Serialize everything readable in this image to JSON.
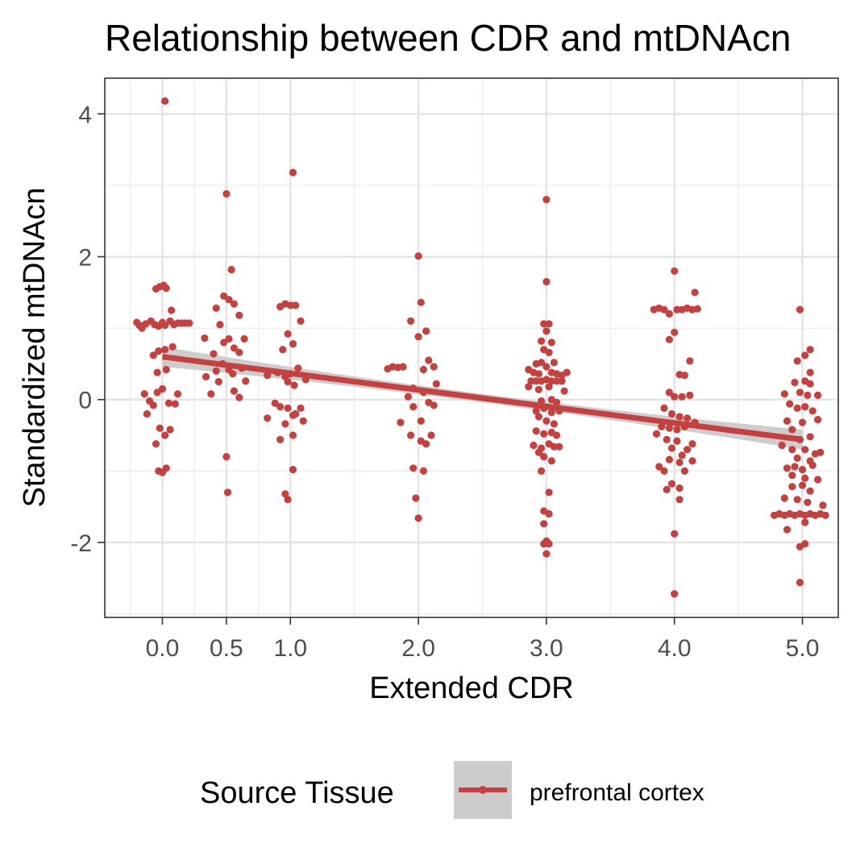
{
  "chart_data": {
    "type": "scatter",
    "title": "Relationship between CDR and mtDNAcn",
    "xlabel": "Extended CDR",
    "ylabel": "Standardized mtDNAcn",
    "xlim": [
      -0.45,
      5.28
    ],
    "ylim": [
      -3.05,
      4.5
    ],
    "x_ticks": [
      {
        "value": 0,
        "label": "0.0"
      },
      {
        "value": 0.5,
        "label": "0.5"
      },
      {
        "value": 1,
        "label": "1.0"
      },
      {
        "value": 2,
        "label": "2.0"
      },
      {
        "value": 3,
        "label": "3.0"
      },
      {
        "value": 4,
        "label": "4.0"
      },
      {
        "value": 5,
        "label": "5.0"
      }
    ],
    "y_ticks": [
      {
        "value": -2,
        "label": "-2"
      },
      {
        "value": 0,
        "label": "0"
      },
      {
        "value": 2,
        "label": "2"
      },
      {
        "value": 4,
        "label": "4"
      }
    ],
    "grid": true,
    "legend_position": "bottom",
    "legend": {
      "title": "Source Tissue",
      "entries": [
        {
          "label": "prefrontal cortex",
          "color": "#c5403f"
        }
      ]
    },
    "point_color": "#c5403f",
    "band_color": "#c8c8c8",
    "fit": {
      "x_start": 0,
      "x_end": 5,
      "y_start": 0.6,
      "y_end": -0.56,
      "band_halfwidth_start": 0.14,
      "band_halfwidth_mid": 0.06,
      "band_halfwidth_end": 0.14
    },
    "series": [
      {
        "name": "prefrontal cortex",
        "points": [
          [
            0.02,
            4.18
          ],
          [
            -0.2,
            1.08
          ],
          [
            -0.18,
            1.04
          ],
          [
            -0.16,
            1.0
          ],
          [
            -0.13,
            1.06
          ],
          [
            -0.09,
            1.1
          ],
          [
            -0.06,
            1.05
          ],
          [
            -0.03,
            1.03
          ],
          [
            0.0,
            1.08
          ],
          [
            0.02,
            1.04
          ],
          [
            0.06,
            1.1
          ],
          [
            0.09,
            1.05
          ],
          [
            0.12,
            1.07
          ],
          [
            0.15,
            1.07
          ],
          [
            0.18,
            1.07
          ],
          [
            0.21,
            1.07
          ],
          [
            -0.05,
            1.55
          ],
          [
            -0.02,
            1.58
          ],
          [
            0.01,
            1.6
          ],
          [
            0.03,
            1.56
          ],
          [
            0.07,
            1.25
          ],
          [
            -0.07,
            0.62
          ],
          [
            -0.03,
            0.68
          ],
          [
            0.02,
            0.7
          ],
          [
            0.08,
            0.74
          ],
          [
            -0.04,
            0.38
          ],
          [
            0.03,
            0.42
          ],
          [
            -0.14,
            0.08
          ],
          [
            -0.1,
            -0.02
          ],
          [
            -0.07,
            -0.08
          ],
          [
            -0.04,
            0.1
          ],
          [
            0.0,
            0.15
          ],
          [
            0.05,
            -0.05
          ],
          [
            0.1,
            -0.06
          ],
          [
            0.12,
            0.08
          ],
          [
            -0.12,
            -0.2
          ],
          [
            -0.02,
            -0.4
          ],
          [
            0.02,
            -0.5
          ],
          [
            0.06,
            -0.42
          ],
          [
            -0.05,
            -0.62
          ],
          [
            -0.03,
            -1.0
          ],
          [
            0.0,
            -1.02
          ],
          [
            0.03,
            -0.96
          ],
          [
            0.5,
            2.88
          ],
          [
            0.48,
            1.45
          ],
          [
            0.52,
            1.4
          ],
          [
            0.54,
            1.82
          ],
          [
            0.42,
            1.28
          ],
          [
            0.56,
            1.34
          ],
          [
            0.6,
            1.18
          ],
          [
            0.45,
            1.05
          ],
          [
            0.33,
            0.86
          ],
          [
            0.48,
            0.8
          ],
          [
            0.52,
            0.85
          ],
          [
            0.64,
            0.85
          ],
          [
            0.4,
            0.64
          ],
          [
            0.56,
            0.72
          ],
          [
            0.6,
            0.66
          ],
          [
            0.34,
            0.32
          ],
          [
            0.42,
            0.4
          ],
          [
            0.47,
            0.5
          ],
          [
            0.52,
            0.42
          ],
          [
            0.55,
            0.36
          ],
          [
            0.62,
            0.44
          ],
          [
            0.44,
            0.25
          ],
          [
            0.65,
            0.26
          ],
          [
            0.38,
            0.08
          ],
          [
            0.56,
            0.12
          ],
          [
            0.6,
            0.03
          ],
          [
            0.5,
            -0.8
          ],
          [
            0.51,
            -1.3
          ],
          [
            1.02,
            3.18
          ],
          [
            0.92,
            1.3
          ],
          [
            0.96,
            1.34
          ],
          [
            1.0,
            1.32
          ],
          [
            1.04,
            1.32
          ],
          [
            1.08,
            1.1
          ],
          [
            0.98,
            0.92
          ],
          [
            0.94,
            0.7
          ],
          [
            1.02,
            0.78
          ],
          [
            0.82,
            0.34
          ],
          [
            0.9,
            0.38
          ],
          [
            0.96,
            0.32
          ],
          [
            1.0,
            0.36
          ],
          [
            1.06,
            0.44
          ],
          [
            1.12,
            0.28
          ],
          [
            0.98,
            0.25
          ],
          [
            1.03,
            0.2
          ],
          [
            0.88,
            -0.05
          ],
          [
            0.92,
            -0.1
          ],
          [
            0.98,
            -0.12
          ],
          [
            1.04,
            -0.2
          ],
          [
            1.08,
            -0.12
          ],
          [
            0.82,
            -0.26
          ],
          [
            0.96,
            -0.34
          ],
          [
            1.02,
            -0.22
          ],
          [
            1.1,
            -0.3
          ],
          [
            0.92,
            -0.56
          ],
          [
            1.02,
            -0.5
          ],
          [
            1.02,
            -0.98
          ],
          [
            0.96,
            -1.32
          ],
          [
            0.98,
            -1.4
          ],
          [
            2.0,
            2.01
          ],
          [
            2.02,
            1.36
          ],
          [
            1.94,
            1.1
          ],
          [
            2.06,
            0.96
          ],
          [
            2.0,
            0.88
          ],
          [
            1.76,
            0.43
          ],
          [
            1.8,
            0.46
          ],
          [
            1.84,
            0.45
          ],
          [
            1.88,
            0.46
          ],
          [
            2.04,
            0.42
          ],
          [
            2.08,
            0.55
          ],
          [
            2.12,
            0.46
          ],
          [
            2.14,
            0.22
          ],
          [
            1.96,
            0.16
          ],
          [
            2.04,
            0.1
          ],
          [
            1.92,
            0.04
          ],
          [
            1.96,
            -0.1
          ],
          [
            2.08,
            -0.04
          ],
          [
            2.12,
            -0.08
          ],
          [
            1.86,
            -0.32
          ],
          [
            2.02,
            -0.3
          ],
          [
            1.94,
            -0.5
          ],
          [
            2.02,
            -0.58
          ],
          [
            2.06,
            -0.62
          ],
          [
            2.1,
            -0.5
          ],
          [
            1.96,
            -0.96
          ],
          [
            2.04,
            -1.0
          ],
          [
            1.98,
            -1.38
          ],
          [
            2.0,
            -1.66
          ],
          [
            3.0,
            2.8
          ],
          [
            3.0,
            1.65
          ],
          [
            2.98,
            1.06
          ],
          [
            3.02,
            1.06
          ],
          [
            3.0,
            0.96
          ],
          [
            2.96,
            0.82
          ],
          [
            3.04,
            0.8
          ],
          [
            2.98,
            0.7
          ],
          [
            3.02,
            0.66
          ],
          [
            2.92,
            0.5
          ],
          [
            2.96,
            0.52
          ],
          [
            3.06,
            0.52
          ],
          [
            3.0,
            0.46
          ],
          [
            2.86,
            0.42
          ],
          [
            2.9,
            0.38
          ],
          [
            2.94,
            0.36
          ],
          [
            3.04,
            0.38
          ],
          [
            3.08,
            0.36
          ],
          [
            3.12,
            0.34
          ],
          [
            3.16,
            0.38
          ],
          [
            2.88,
            0.26
          ],
          [
            2.92,
            0.26
          ],
          [
            2.96,
            0.26
          ],
          [
            3.0,
            0.28
          ],
          [
            3.04,
            0.26
          ],
          [
            3.08,
            0.26
          ],
          [
            3.12,
            0.26
          ],
          [
            2.86,
            0.18
          ],
          [
            2.94,
            0.14
          ],
          [
            3.02,
            0.18
          ],
          [
            3.14,
            0.12
          ],
          [
            2.96,
            -0.02
          ],
          [
            3.04,
            0.0
          ],
          [
            3.08,
            -0.04
          ],
          [
            2.92,
            -0.16
          ],
          [
            2.98,
            -0.12
          ],
          [
            3.04,
            -0.18
          ],
          [
            3.1,
            -0.16
          ],
          [
            2.94,
            -0.24
          ],
          [
            3.0,
            -0.3
          ],
          [
            3.06,
            -0.34
          ],
          [
            2.92,
            -0.44
          ],
          [
            2.98,
            -0.48
          ],
          [
            3.04,
            -0.46
          ],
          [
            3.08,
            -0.5
          ],
          [
            2.9,
            -0.64
          ],
          [
            2.96,
            -0.68
          ],
          [
            3.02,
            -0.62
          ],
          [
            3.06,
            -0.66
          ],
          [
            3.1,
            -0.66
          ],
          [
            2.94,
            -0.74
          ],
          [
            2.98,
            -0.8
          ],
          [
            3.04,
            -0.86
          ],
          [
            2.96,
            -1.0
          ],
          [
            3.02,
            -1.3
          ],
          [
            2.98,
            -1.56
          ],
          [
            3.02,
            -1.6
          ],
          [
            2.98,
            -1.74
          ],
          [
            3.0,
            -1.98
          ],
          [
            2.98,
            -2.02
          ],
          [
            3.02,
            -2.02
          ],
          [
            3.0,
            -2.16
          ],
          [
            4.0,
            1.8
          ],
          [
            4.16,
            1.5
          ],
          [
            3.84,
            1.26
          ],
          [
            3.88,
            1.28
          ],
          [
            3.92,
            1.26
          ],
          [
            3.96,
            1.2
          ],
          [
            4.02,
            1.26
          ],
          [
            4.06,
            1.26
          ],
          [
            4.1,
            1.28
          ],
          [
            4.14,
            1.26
          ],
          [
            4.18,
            1.27
          ],
          [
            4.0,
            0.94
          ],
          [
            3.96,
            0.84
          ],
          [
            4.12,
            0.54
          ],
          [
            4.04,
            0.35
          ],
          [
            4.08,
            0.34
          ],
          [
            3.96,
            0.1
          ],
          [
            4.0,
            0.04
          ],
          [
            4.06,
            0.04
          ],
          [
            4.12,
            0.06
          ],
          [
            3.92,
            -0.12
          ],
          [
            3.98,
            -0.2
          ],
          [
            4.04,
            -0.24
          ],
          [
            4.1,
            -0.26
          ],
          [
            4.16,
            -0.32
          ],
          [
            3.9,
            -0.38
          ],
          [
            3.96,
            -0.4
          ],
          [
            4.02,
            -0.42
          ],
          [
            4.08,
            -0.38
          ],
          [
            3.86,
            -0.48
          ],
          [
            3.94,
            -0.56
          ],
          [
            4.02,
            -0.58
          ],
          [
            4.14,
            -0.62
          ],
          [
            3.98,
            -0.68
          ],
          [
            4.1,
            -0.7
          ],
          [
            4.06,
            -0.78
          ],
          [
            3.96,
            -0.84
          ],
          [
            4.14,
            -0.86
          ],
          [
            3.88,
            -0.94
          ],
          [
            3.92,
            -1.0
          ],
          [
            4.04,
            -0.88
          ],
          [
            4.08,
            -1.0
          ],
          [
            3.98,
            -1.18
          ],
          [
            4.04,
            -1.24
          ],
          [
            3.94,
            -1.26
          ],
          [
            4.04,
            -1.4
          ],
          [
            4.0,
            -1.88
          ],
          [
            4.0,
            -2.72
          ],
          [
            4.98,
            1.26
          ],
          [
            5.06,
            0.7
          ],
          [
            5.02,
            0.62
          ],
          [
            4.96,
            0.54
          ],
          [
            5.06,
            0.38
          ],
          [
            4.94,
            0.24
          ],
          [
            5.02,
            0.26
          ],
          [
            5.06,
            0.22
          ],
          [
            4.86,
            0.08
          ],
          [
            4.98,
            0.1
          ],
          [
            5.04,
            0.06
          ],
          [
            5.12,
            0.06
          ],
          [
            4.9,
            -0.06
          ],
          [
            4.96,
            -0.12
          ],
          [
            5.02,
            -0.1
          ],
          [
            5.08,
            -0.16
          ],
          [
            4.88,
            -0.3
          ],
          [
            5.0,
            -0.32
          ],
          [
            5.12,
            -0.28
          ],
          [
            4.92,
            -0.42
          ],
          [
            4.98,
            -0.56
          ],
          [
            5.06,
            -0.52
          ],
          [
            4.84,
            -0.64
          ],
          [
            4.92,
            -0.7
          ],
          [
            5.02,
            -0.7
          ],
          [
            5.1,
            -0.76
          ],
          [
            5.14,
            -0.74
          ],
          [
            4.96,
            -0.82
          ],
          [
            5.06,
            -0.86
          ],
          [
            4.88,
            -0.96
          ],
          [
            4.94,
            -0.94
          ],
          [
            5.0,
            -0.98
          ],
          [
            5.08,
            -0.92
          ],
          [
            4.92,
            -1.06
          ],
          [
            5.02,
            -1.1
          ],
          [
            5.12,
            -1.12
          ],
          [
            4.92,
            -1.22
          ],
          [
            5.0,
            -1.2
          ],
          [
            5.06,
            -1.28
          ],
          [
            4.86,
            -1.38
          ],
          [
            4.96,
            -1.4
          ],
          [
            5.04,
            -1.44
          ],
          [
            5.16,
            -1.48
          ],
          [
            4.78,
            -1.62
          ],
          [
            4.82,
            -1.6
          ],
          [
            4.86,
            -1.62
          ],
          [
            4.9,
            -1.6
          ],
          [
            4.94,
            -1.62
          ],
          [
            4.98,
            -1.6
          ],
          [
            5.02,
            -1.62
          ],
          [
            5.06,
            -1.6
          ],
          [
            5.1,
            -1.62
          ],
          [
            5.14,
            -1.6
          ],
          [
            5.18,
            -1.62
          ],
          [
            4.88,
            -1.82
          ],
          [
            5.02,
            -1.72
          ],
          [
            4.98,
            -2.06
          ],
          [
            5.02,
            -2.02
          ],
          [
            4.98,
            -2.56
          ]
        ]
      }
    ]
  }
}
